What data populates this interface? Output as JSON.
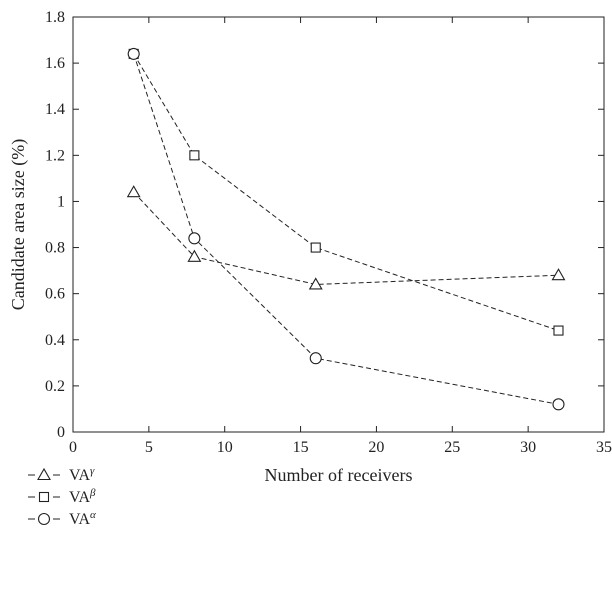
{
  "chart_data": {
    "type": "line",
    "xlabel": "Number of receivers",
    "ylabel": "Candidate area size (%)",
    "xlim": [
      0,
      35
    ],
    "ylim": [
      0,
      1.8
    ],
    "x_ticks": [
      0,
      5,
      10,
      15,
      20,
      25,
      30,
      35
    ],
    "y_ticks": [
      0,
      0.2,
      0.4,
      0.6,
      0.8,
      1,
      1.2,
      1.4,
      1.6,
      1.8
    ],
    "x_tick_labels": [
      "0",
      "5",
      "10",
      "15",
      "20",
      "25",
      "30",
      "35"
    ],
    "y_tick_labels": [
      "0",
      "0.2",
      "0.4",
      "0.6",
      "0.8",
      "1",
      "1.2",
      "1.4",
      "1.6",
      "1.8"
    ],
    "grid": false,
    "legend_position": "bottom-left",
    "series": [
      {
        "name": "VA",
        "sup": "γ",
        "marker": "triangle",
        "x": [
          4,
          8,
          16,
          32
        ],
        "values": [
          1.04,
          0.76,
          0.64,
          0.68
        ]
      },
      {
        "name": "VA",
        "sup": "β",
        "marker": "square",
        "x": [
          4,
          8,
          16,
          32
        ],
        "values": [
          1.64,
          1.2,
          0.8,
          0.44
        ]
      },
      {
        "name": "VA",
        "sup": "α",
        "marker": "circle",
        "x": [
          4,
          8,
          16,
          32
        ],
        "values": [
          1.64,
          0.84,
          0.32,
          0.12
        ]
      }
    ]
  }
}
